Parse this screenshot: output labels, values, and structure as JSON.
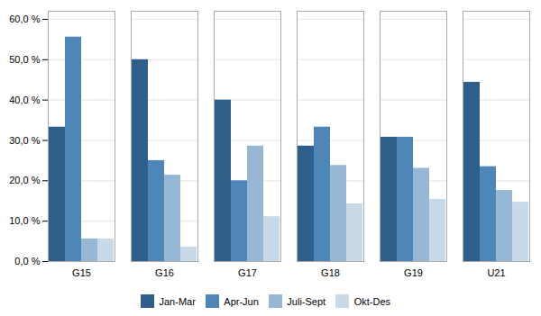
{
  "chart_data": {
    "type": "bar",
    "categories": [
      "G15",
      "G16",
      "G17",
      "G18",
      "G19",
      "U21"
    ],
    "series": [
      {
        "name": "Jan-Mar",
        "color": "#2E5F8A",
        "values": [
          33.3,
          50.0,
          40.0,
          28.6,
          30.8,
          44.4
        ]
      },
      {
        "name": "Apr-Jun",
        "color": "#4E86B8",
        "values": [
          55.6,
          25.0,
          20.0,
          33.3,
          30.8,
          23.5
        ]
      },
      {
        "name": "Juli-Sept",
        "color": "#96B8D5",
        "values": [
          5.6,
          21.4,
          28.6,
          23.8,
          23.1,
          17.6
        ]
      },
      {
        "name": "Okt-Des",
        "color": "#C8D9E8",
        "values": [
          5.6,
          3.6,
          11.1,
          14.3,
          15.4,
          14.7
        ]
      }
    ],
    "ylim": [
      0,
      62
    ],
    "yticks": [
      {
        "value": 0,
        "label": "0,0 %"
      },
      {
        "value": 10,
        "label": "10,0 %"
      },
      {
        "value": 20,
        "label": "20,0 %"
      },
      {
        "value": 30,
        "label": "30,0 %"
      },
      {
        "value": 40,
        "label": "40,0 %"
      },
      {
        "value": 50,
        "label": "50,0 %"
      },
      {
        "value": 60,
        "label": "60,0 %"
      }
    ],
    "grid": true,
    "legend": "bottom"
  }
}
